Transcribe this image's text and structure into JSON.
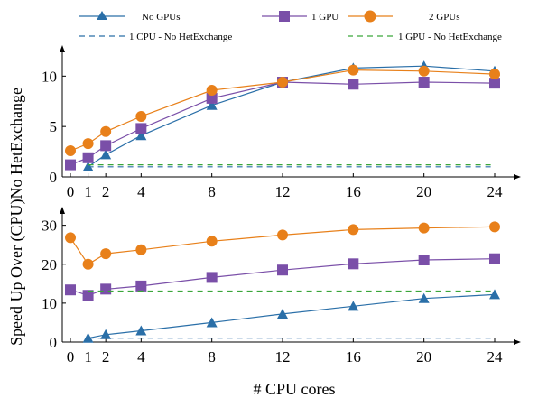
{
  "chart_data": [
    {
      "type": "line",
      "x": [
        0,
        1,
        2,
        4,
        8,
        12,
        16,
        20,
        24
      ],
      "xticks": [
        "0",
        "1",
        "2",
        "4",
        "8",
        "12",
        "16",
        "20",
        "24"
      ],
      "ylim": [
        0,
        12
      ],
      "yticks": [
        "0",
        "5",
        "10"
      ],
      "ylabel": "Speed Up Over (CPU)No HetExchange",
      "series": [
        {
          "name": "No GPUs",
          "color": "#2a6fa8",
          "marker": "triangle",
          "x": [
            1,
            2,
            4,
            8,
            12,
            16,
            20,
            24
          ],
          "values": [
            1.0,
            2.2,
            4.1,
            7.1,
            9.4,
            10.8,
            11.0,
            10.5
          ]
        },
        {
          "name": "1 GPU",
          "color": "#7a4fa8",
          "marker": "square",
          "x": [
            0,
            1,
            2,
            4,
            8,
            12,
            16,
            20,
            24
          ],
          "values": [
            1.2,
            1.9,
            3.1,
            4.8,
            7.8,
            9.4,
            9.2,
            9.4,
            9.3
          ]
        },
        {
          "name": "2 GPUs",
          "color": "#e8801a",
          "marker": "circle",
          "x": [
            0,
            1,
            2,
            4,
            8,
            12,
            16,
            20,
            24
          ],
          "values": [
            2.6,
            3.3,
            4.5,
            6.0,
            8.6,
            9.4,
            10.6,
            10.5,
            10.2
          ]
        },
        {
          "name": "1 CPU - No HetExchange",
          "color": "#2a6fa8",
          "dashed": true,
          "x": [
            1,
            24
          ],
          "values": [
            1.0,
            1.0
          ]
        },
        {
          "name": "1 GPU - No HetExchange",
          "color": "#3aa63a",
          "dashed": true,
          "x": [
            1,
            24
          ],
          "values": [
            1.2,
            1.2
          ]
        }
      ]
    },
    {
      "type": "line",
      "x": [
        0,
        1,
        2,
        4,
        8,
        12,
        16,
        20,
        24
      ],
      "xticks": [
        "0",
        "1",
        "2",
        "4",
        "8",
        "12",
        "16",
        "20",
        "24"
      ],
      "xlabel": "# CPU cores",
      "ylim": [
        0,
        32
      ],
      "yticks": [
        "0",
        "10",
        "20",
        "30"
      ],
      "series": [
        {
          "name": "No GPUs",
          "color": "#2a6fa8",
          "marker": "triangle",
          "x": [
            1,
            2,
            4,
            8,
            12,
            16,
            20,
            24
          ],
          "values": [
            1.0,
            1.9,
            2.9,
            5.0,
            7.2,
            9.2,
            11.2,
            12.2
          ]
        },
        {
          "name": "1 GPU",
          "color": "#7a4fa8",
          "marker": "square",
          "x": [
            0,
            1,
            2,
            4,
            8,
            12,
            16,
            20,
            24
          ],
          "values": [
            13.4,
            12.0,
            13.6,
            14.4,
            16.6,
            18.5,
            20.1,
            21.1,
            21.4
          ]
        },
        {
          "name": "2 GPUs",
          "color": "#e8801a",
          "marker": "circle",
          "x": [
            0,
            1,
            2,
            4,
            8,
            12,
            16,
            20,
            24
          ],
          "values": [
            26.8,
            20.0,
            22.7,
            23.7,
            25.9,
            27.5,
            28.9,
            29.3,
            29.6
          ]
        },
        {
          "name": "1 CPU - No HetExchange",
          "color": "#2a6fa8",
          "dashed": true,
          "x": [
            1,
            24
          ],
          "values": [
            1.0,
            1.0
          ]
        },
        {
          "name": "1 GPU - No HetExchange",
          "color": "#3aa63a",
          "dashed": true,
          "x": [
            1,
            24
          ],
          "values": [
            13.1,
            13.1
          ]
        }
      ]
    }
  ],
  "legend": {
    "items": [
      "No GPUs",
      "1 GPU",
      "2 GPUs",
      "1 CPU - No HetExchange",
      "1 GPU - No HetExchange"
    ]
  }
}
